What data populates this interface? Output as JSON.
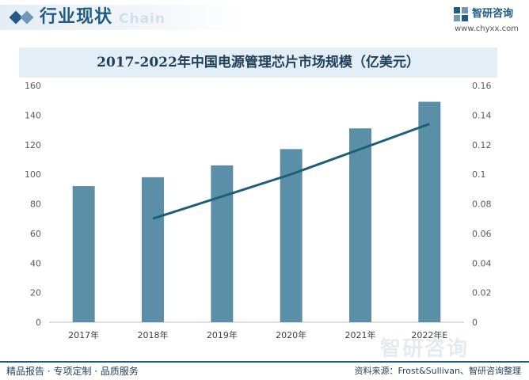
{
  "header": {
    "section_title": "行业现状",
    "section_subtitle": "Chain",
    "logo_name": "智研咨询",
    "logo_url": "www.chyxx.com"
  },
  "colors": {
    "bar": "#5b8fa8",
    "line": "#1c5f78",
    "brand": "#1f5b86",
    "title_bg": "#e3eef6"
  },
  "chart_data": {
    "type": "bar",
    "title": "2017-2022年中国电源管理芯片市场规模（亿美元）",
    "categories": [
      "2017年",
      "2018年",
      "2019年",
      "2020年",
      "2021年",
      "2022年E"
    ],
    "series": [
      {
        "type": "bar",
        "axis": "left",
        "values": [
          92,
          98,
          106,
          117,
          131,
          149
        ]
      },
      {
        "type": "line",
        "axis": "right",
        "values": [
          null,
          0.07,
          0.085,
          0.1,
          0.117,
          0.134
        ]
      }
    ],
    "ylim_left": [
      0,
      160
    ],
    "ylim_right": [
      0,
      0.16
    ],
    "yticks_left": [
      "0",
      "20",
      "40",
      "60",
      "80",
      "100",
      "120",
      "140",
      "160"
    ],
    "yticks_right": [
      "0",
      "0.02",
      "0.04",
      "0.06",
      "0.08",
      "0.1",
      "0.12",
      "0.14",
      "0.16"
    ],
    "xlabel": "",
    "ylabel": "",
    "grid": false
  },
  "watermark": "智研咨询",
  "footer": {
    "left": "精品报告 · 专项定制 · 品质服务",
    "right": "资料来源：Frost&Sullivan、智研咨询整理"
  }
}
